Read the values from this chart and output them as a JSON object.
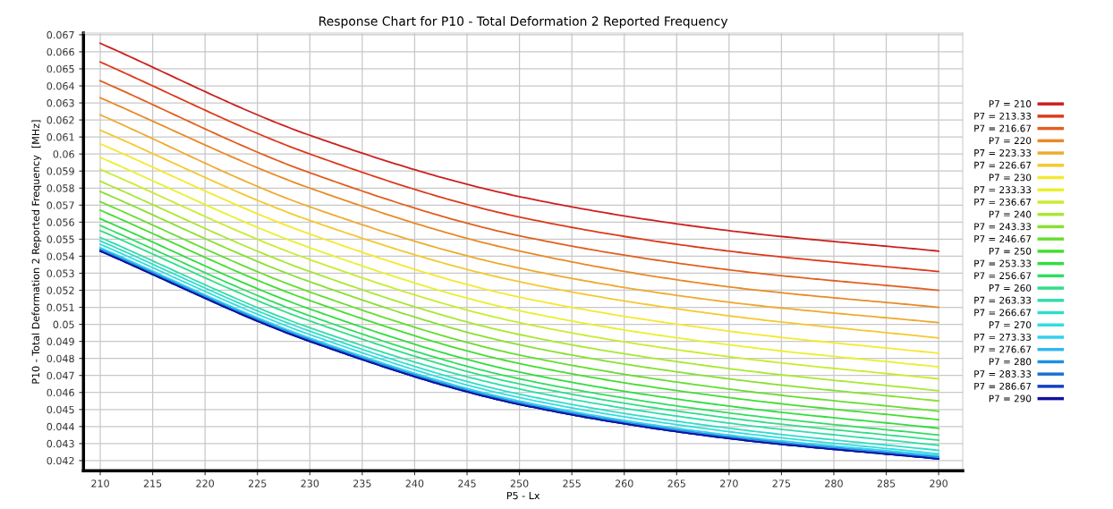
{
  "chart_data": {
    "type": "line",
    "title": "Response Chart for P10 - Total Deformation 2 Reported Frequency",
    "xlabel": "P5 - Lx",
    "ylabel": "P10 - Total Deformation 2 Reported Frequency  [MHz]",
    "x": [
      210,
      230,
      250,
      270,
      290
    ],
    "xlim": [
      208.4,
      292.3
    ],
    "xticks": [
      210,
      215,
      220,
      225,
      230,
      235,
      240,
      245,
      250,
      255,
      260,
      265,
      270,
      275,
      280,
      285,
      290
    ],
    "ylim": [
      0.0414,
      0.0671
    ],
    "yticks": [
      0.042,
      0.043,
      0.044,
      0.045,
      0.046,
      0.047,
      0.048,
      0.049,
      0.05,
      0.051,
      0.052,
      0.053,
      0.054,
      0.055,
      0.056,
      0.057,
      0.058,
      0.059,
      0.06,
      0.061,
      0.062,
      0.063,
      0.064,
      0.065,
      0.066,
      0.067
    ],
    "grid": true,
    "legend": "right",
    "marker": "none",
    "line_style": "solid",
    "series": [
      {
        "name": "P7 = 210",
        "color": "#cc2020",
        "values": [
          0.0665,
          0.0611,
          0.0575,
          0.0555,
          0.0543
        ]
      },
      {
        "name": "P7 = 213.33",
        "color": "#dd3a1a",
        "values": [
          0.0654,
          0.06,
          0.0563,
          0.0543,
          0.0531
        ]
      },
      {
        "name": "P7 = 216.67",
        "color": "#e06020",
        "values": [
          0.0643,
          0.0589,
          0.0552,
          0.0532,
          0.052
        ]
      },
      {
        "name": "P7 = 220",
        "color": "#e88a28",
        "values": [
          0.0633,
          0.058,
          0.0543,
          0.0522,
          0.051
        ]
      },
      {
        "name": "P7 = 223.33",
        "color": "#eeaa30",
        "values": [
          0.0623,
          0.0569,
          0.0533,
          0.0513,
          0.0501
        ]
      },
      {
        "name": "P7 = 226.67",
        "color": "#f5c830",
        "values": [
          0.0614,
          0.0561,
          0.0525,
          0.0505,
          0.0492
        ]
      },
      {
        "name": "P7 = 230",
        "color": "#f5e830",
        "values": [
          0.0606,
          0.0553,
          0.0516,
          0.0496,
          0.0483
        ]
      },
      {
        "name": "P7 = 233.33",
        "color": "#e8f030",
        "values": [
          0.0598,
          0.0545,
          0.0508,
          0.0488,
          0.0475
        ]
      },
      {
        "name": "P7 = 236.67",
        "color": "#c8ec30",
        "values": [
          0.0591,
          0.0538,
          0.0501,
          0.0481,
          0.0468
        ]
      },
      {
        "name": "P7 = 240",
        "color": "#a8e830",
        "values": [
          0.0584,
          0.0531,
          0.0494,
          0.0474,
          0.0461
        ]
      },
      {
        "name": "P7 = 243.33",
        "color": "#88e030",
        "values": [
          0.0578,
          0.0525,
          0.0488,
          0.0468,
          0.0455
        ]
      },
      {
        "name": "P7 = 246.67",
        "color": "#66dd30",
        "values": [
          0.0572,
          0.0519,
          0.0482,
          0.0462,
          0.0449
        ]
      },
      {
        "name": "P7 = 250",
        "color": "#44dd30",
        "values": [
          0.0567,
          0.0514,
          0.0477,
          0.0457,
          0.0444
        ]
      },
      {
        "name": "P7 = 253.33",
        "color": "#30dd40",
        "values": [
          0.0562,
          0.0509,
          0.0472,
          0.0452,
          0.0439
        ]
      },
      {
        "name": "P7 = 256.67",
        "color": "#30dd60",
        "values": [
          0.0558,
          0.0505,
          0.0468,
          0.0448,
          0.0435
        ]
      },
      {
        "name": "P7 = 260",
        "color": "#30dd88",
        "values": [
          0.0555,
          0.0502,
          0.0465,
          0.0445,
          0.0432
        ]
      },
      {
        "name": "P7 = 263.33",
        "color": "#30ddaa",
        "values": [
          0.0551,
          0.0498,
          0.0462,
          0.0442,
          0.0429
        ]
      },
      {
        "name": "P7 = 266.67",
        "color": "#30ddc8",
        "values": [
          0.0549,
          0.0496,
          0.0459,
          0.0439,
          0.0426
        ]
      },
      {
        "name": "P7 = 270",
        "color": "#30dde0",
        "values": [
          0.0547,
          0.0494,
          0.0457,
          0.0437,
          0.0424
        ]
      },
      {
        "name": "P7 = 273.33",
        "color": "#30d0ee",
        "values": [
          0.0545,
          0.0492,
          0.0455,
          0.0435,
          0.0423
        ]
      },
      {
        "name": "P7 = 276.67",
        "color": "#30b8ee",
        "values": [
          0.0544,
          0.0491,
          0.0454,
          0.0434,
          0.0422
        ]
      },
      {
        "name": "P7 = 280",
        "color": "#2090e0",
        "values": [
          0.0544,
          0.0491,
          0.0454,
          0.0434,
          0.0422
        ]
      },
      {
        "name": "P7 = 283.33",
        "color": "#1a70d0",
        "values": [
          0.0543,
          0.049,
          0.0453,
          0.0433,
          0.0421
        ]
      },
      {
        "name": "P7 = 286.67",
        "color": "#1040c0",
        "values": [
          0.0543,
          0.049,
          0.0453,
          0.0433,
          0.0421
        ]
      },
      {
        "name": "P7 = 290",
        "color": "#1010a0",
        "values": [
          0.0543,
          0.049,
          0.0453,
          0.0433,
          0.0421
        ]
      }
    ]
  }
}
